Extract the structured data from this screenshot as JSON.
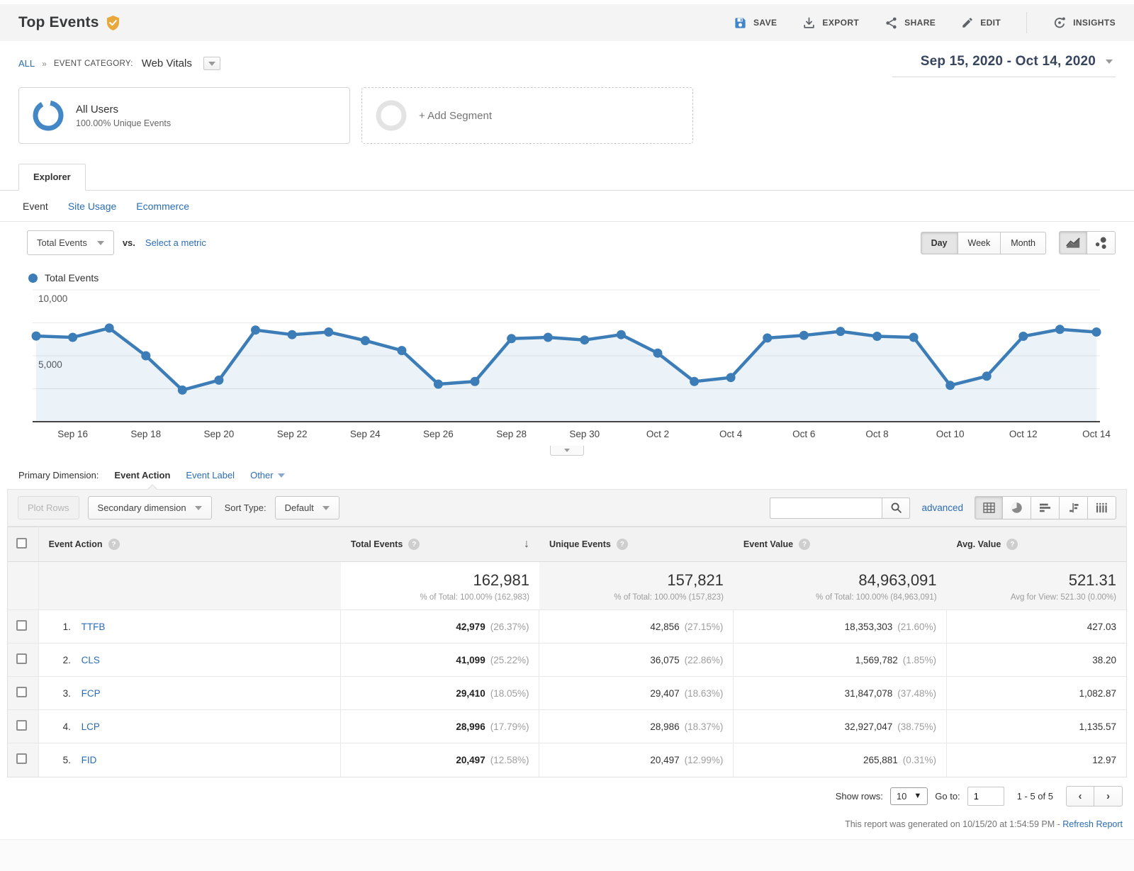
{
  "colors": {
    "accent_blue": "#3c7db8",
    "link_blue": "#2b6db4",
    "badge_gold": "#e9a83c"
  },
  "header": {
    "title": "Top Events",
    "actions": [
      {
        "label": "SAVE",
        "icon": "save-icon"
      },
      {
        "label": "EXPORT",
        "icon": "export-icon"
      },
      {
        "label": "SHARE",
        "icon": "share-icon"
      },
      {
        "label": "EDIT",
        "icon": "edit-icon"
      },
      {
        "label": "INSIGHTS",
        "icon": "insights-icon"
      }
    ]
  },
  "breadcrumb": {
    "all": "ALL",
    "category_label": "EVENT CATEGORY:",
    "category_value": "Web Vitals"
  },
  "date_range": "Sep 15, 2020 - Oct 14, 2020",
  "segments": {
    "all_users": {
      "title": "All Users",
      "subtitle": "100.00% Unique Events"
    },
    "add_label": "+ Add Segment"
  },
  "tabs": {
    "explorer": "Explorer",
    "subtabs": [
      {
        "label": "Event",
        "active": true
      },
      {
        "label": "Site Usage",
        "active": false
      },
      {
        "label": "Ecommerce",
        "active": false
      }
    ]
  },
  "metric_bar": {
    "metric_selector": "Total Events",
    "vs": "vs.",
    "select_metric": "Select a metric",
    "granularity": [
      "Day",
      "Week",
      "Month"
    ],
    "granularity_active": "Day"
  },
  "legend": {
    "label": "Total Events"
  },
  "chart_data": {
    "type": "line",
    "title": "Total Events",
    "series_color": "#3c7db8",
    "x": [
      "Sep 15",
      "Sep 16",
      "Sep 17",
      "Sep 18",
      "Sep 19",
      "Sep 20",
      "Sep 21",
      "Sep 22",
      "Sep 23",
      "Sep 24",
      "Sep 25",
      "Sep 26",
      "Sep 27",
      "Sep 28",
      "Sep 29",
      "Sep 30",
      "Oct 1",
      "Oct 2",
      "Oct 3",
      "Oct 4",
      "Oct 5",
      "Oct 6",
      "Oct 7",
      "Oct 8",
      "Oct 9",
      "Oct 10",
      "Oct 11",
      "Oct 12",
      "Oct 13",
      "Oct 14"
    ],
    "values": [
      6500,
      6400,
      7100,
      5000,
      2400,
      3150,
      6950,
      6600,
      6800,
      6150,
      5400,
      2850,
      3050,
      6300,
      6400,
      6200,
      6600,
      5200,
      3050,
      3350,
      6350,
      6550,
      6850,
      6480,
      6400,
      2750,
      3450,
      6480,
      7000,
      6800
    ],
    "x_tick_every": 2,
    "y_ticks": [
      10000,
      5000
    ],
    "y_tick_labels": [
      "10,000",
      "5,000"
    ],
    "grid_values": [
      2500,
      5000,
      7500,
      10000
    ],
    "ylim": [
      0,
      10000
    ],
    "grid": true,
    "legend_position": "top-left",
    "xlabel": "",
    "ylabel": ""
  },
  "primary_dimension": {
    "label": "Primary Dimension:",
    "options": [
      {
        "label": "Event Action",
        "active": true
      },
      {
        "label": "Event Label",
        "active": false
      },
      {
        "label": "Other",
        "active": false,
        "has_caret": true
      }
    ]
  },
  "table_toolbar": {
    "plot_rows": "Plot Rows",
    "secondary_dimension": "Secondary dimension",
    "sort_type_label": "Sort Type:",
    "sort_type_value": "Default",
    "search_value": "",
    "advanced": "advanced",
    "view_icons": [
      "table-view-icon",
      "percent-view-icon",
      "performance-view-icon",
      "comparison-view-icon",
      "pivot-view-icon"
    ],
    "view_active": "table-view-icon"
  },
  "table": {
    "columns": [
      {
        "label": "Event Action",
        "has_help": true
      },
      {
        "label": "Total Events",
        "has_help": true,
        "sorted": "desc"
      },
      {
        "label": "Unique Events",
        "has_help": true
      },
      {
        "label": "Event Value",
        "has_help": true
      },
      {
        "label": "Avg. Value",
        "has_help": true
      }
    ],
    "totals": {
      "total_events": {
        "value": "162,981",
        "note": "% of Total: 100.00% (162,983)"
      },
      "unique_events": {
        "value": "157,821",
        "note": "% of Total: 100.00% (157,823)"
      },
      "event_value": {
        "value": "84,963,091",
        "note": "% of Total: 100.00% (84,963,091)"
      },
      "avg_value": {
        "value": "521.31",
        "note": "Avg for View: 521.30 (0.00%)"
      }
    },
    "rows": [
      {
        "rank": "1.",
        "action": "TTFB",
        "total_events": "42,979",
        "total_events_pct": "(26.37%)",
        "unique_events": "42,856",
        "unique_events_pct": "(27.15%)",
        "event_value": "18,353,303",
        "event_value_pct": "(21.60%)",
        "avg_value": "427.03"
      },
      {
        "rank": "2.",
        "action": "CLS",
        "total_events": "41,099",
        "total_events_pct": "(25.22%)",
        "unique_events": "36,075",
        "unique_events_pct": "(22.86%)",
        "event_value": "1,569,782",
        "event_value_pct": "(1.85%)",
        "avg_value": "38.20"
      },
      {
        "rank": "3.",
        "action": "FCP",
        "total_events": "29,410",
        "total_events_pct": "(18.05%)",
        "unique_events": "29,407",
        "unique_events_pct": "(18.63%)",
        "event_value": "31,847,078",
        "event_value_pct": "(37.48%)",
        "avg_value": "1,082.87"
      },
      {
        "rank": "4.",
        "action": "LCP",
        "total_events": "28,996",
        "total_events_pct": "(17.79%)",
        "unique_events": "28,986",
        "unique_events_pct": "(18.37%)",
        "event_value": "32,927,047",
        "event_value_pct": "(38.75%)",
        "avg_value": "1,135.57"
      },
      {
        "rank": "5.",
        "action": "FID",
        "total_events": "20,497",
        "total_events_pct": "(12.58%)",
        "unique_events": "20,497",
        "unique_events_pct": "(12.99%)",
        "event_value": "265,881",
        "event_value_pct": "(0.31%)",
        "avg_value": "12.97"
      }
    ]
  },
  "footer": {
    "show_rows_label": "Show rows:",
    "show_rows_value": "10",
    "goto_label": "Go to:",
    "goto_value": "1",
    "range": "1 - 5 of 5"
  },
  "report_note": {
    "text": "This report was generated on 10/15/20 at 1:54:59 PM - ",
    "link": "Refresh Report"
  }
}
